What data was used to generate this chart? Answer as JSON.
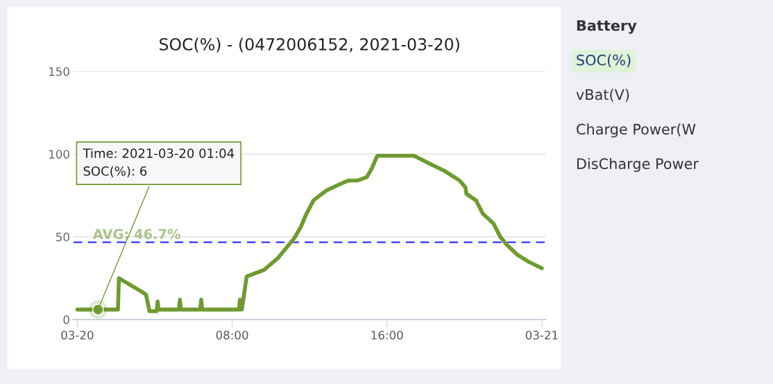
{
  "chart_data": {
    "type": "line",
    "title": "SOC(%) - (0472006152, 2021-03-20)",
    "series": [
      {
        "color": "#6f9a2f",
        "x": [
          0,
          1.07,
          2.1,
          2.15,
          3.3,
          3.55,
          3.73,
          4.1,
          4.15,
          4.2,
          5.25,
          5.3,
          5.35,
          6.35,
          6.4,
          6.45,
          8.35,
          8.4,
          8.5,
          8.75,
          9.65,
          10.35,
          11.2,
          11.55,
          11.8,
          12.2,
          12.87,
          13.6,
          14.0,
          14.45,
          14.95,
          15.2,
          15.5,
          16.8,
          17.4,
          18.25,
          18.95,
          19.75,
          20.05,
          20.1,
          20.6,
          20.95,
          21.5,
          21.85,
          22.2,
          22.75,
          23.3,
          24.0
        ],
        "values": [
          6,
          6,
          6,
          25,
          17,
          15,
          5,
          5,
          11,
          6,
          6,
          12,
          6,
          6,
          12,
          6,
          6,
          12,
          6,
          26,
          30,
          37,
          49,
          56,
          63,
          72,
          78,
          82,
          84,
          84,
          86,
          91,
          99,
          99,
          99,
          94,
          90,
          84,
          80,
          76,
          72,
          64,
          58,
          50,
          45,
          39,
          35,
          31
        ]
      }
    ],
    "xlim": [
      -0.2,
      24.2
    ],
    "xticks": [
      {
        "value": 0,
        "label": "03-20"
      },
      {
        "value": 8,
        "label": "08:00"
      },
      {
        "value": 16,
        "label": "16:00"
      },
      {
        "value": 24,
        "label": "03-21"
      }
    ],
    "ylim": [
      0,
      150
    ],
    "yticks": [
      0,
      50,
      100,
      150
    ],
    "grid": "y",
    "legend": false,
    "marker": "none",
    "line_style": "solid",
    "ref_lines": [
      {
        "axis": "y",
        "value": 46.7,
        "label": "AVG: 46.7%",
        "color": "#1a1aff",
        "line_style": "dashed"
      }
    ],
    "annotations": [
      {
        "text": "Time: 2021-03-20 01:04\nSOC(%): 6",
        "x": 1.07,
        "y": 6
      },
      "Battery",
      "SOC(%)",
      "vBat(V)",
      "Charge Power(W",
      "DisCharge Power"
    ]
  }
}
